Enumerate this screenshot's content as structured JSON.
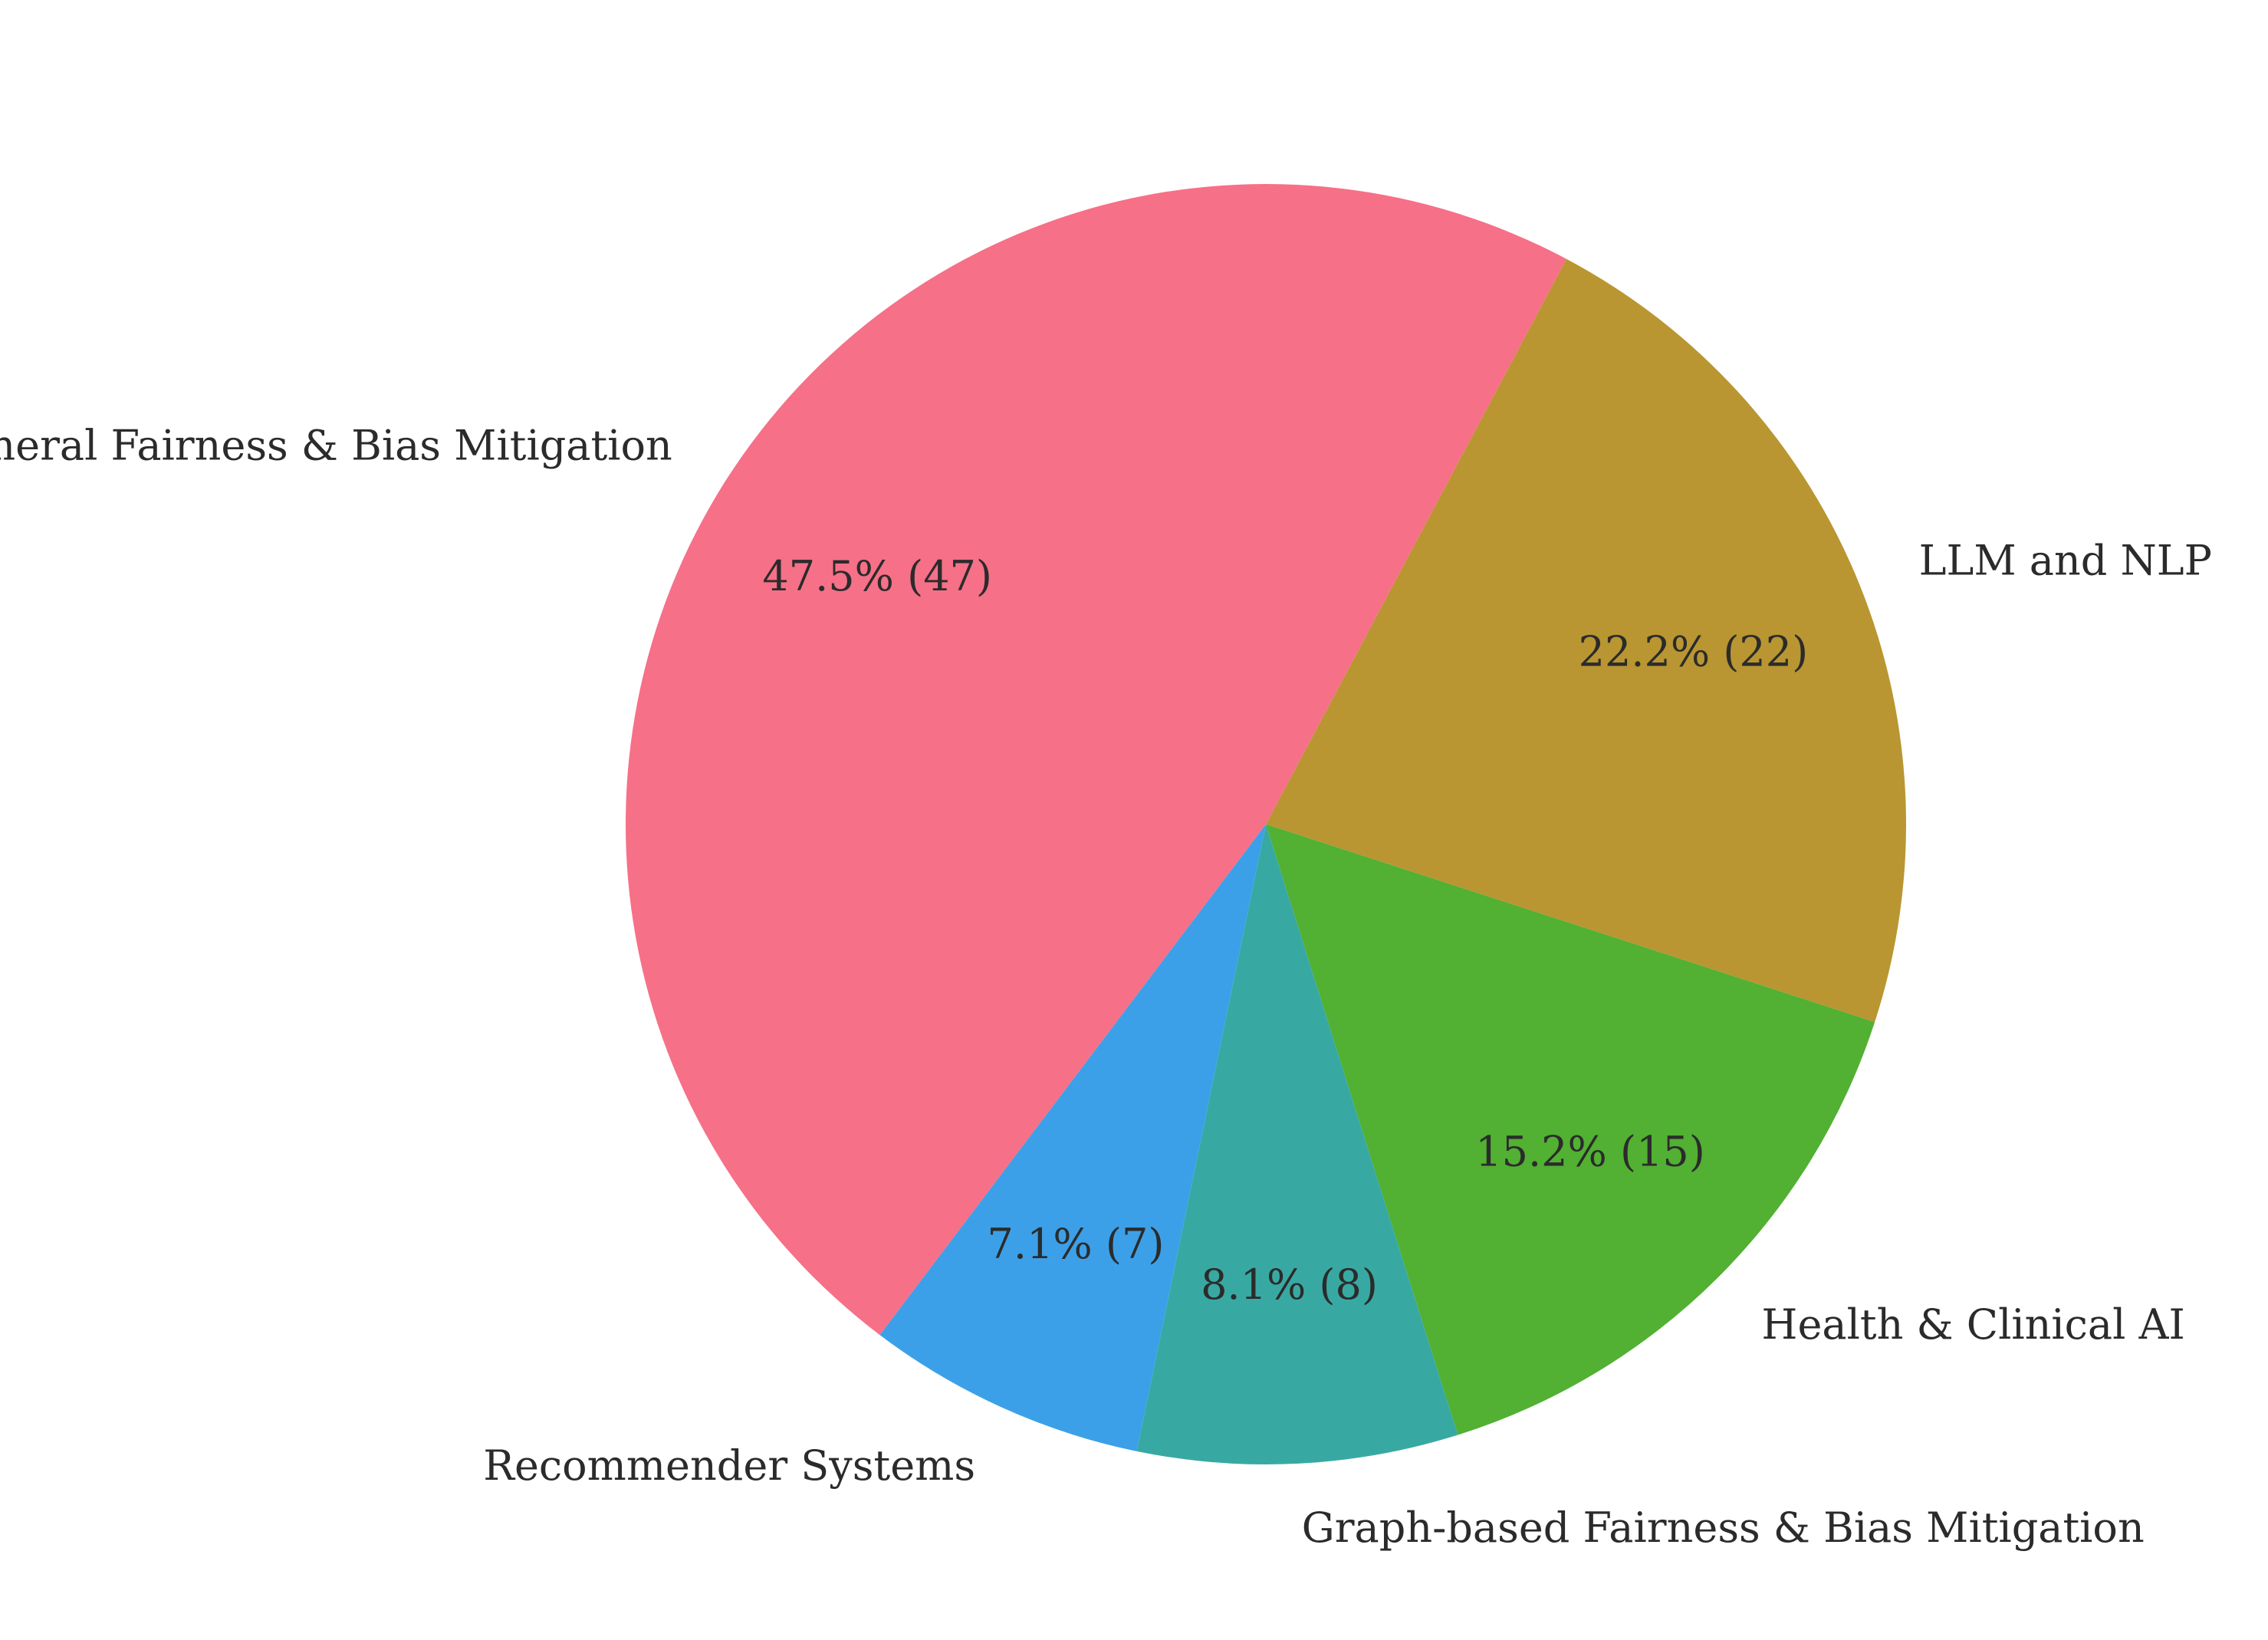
{
  "chart_data": {
    "type": "pie",
    "slices": [
      {
        "label": "LLM and NLP",
        "value": 22,
        "percent_label": "22.2% (22)",
        "color": "#b99631"
      },
      {
        "label": "Health & Clinical AI",
        "value": 15,
        "percent_label": "15.2% (15)",
        "color": "#52b033"
      },
      {
        "label": "Graph-based Fairness & Bias Mitigation",
        "value": 8,
        "percent_label": "8.1% (8)",
        "color": "#38a9a2"
      },
      {
        "label": "Recommender Systems",
        "value": 7,
        "percent_label": "7.1% (7)",
        "color": "#3ca0e8"
      },
      {
        "label": "General Fairness & Bias Mitigation",
        "value": 47,
        "percent_label": "47.5% (47)",
        "color": "#f67088"
      }
    ]
  }
}
